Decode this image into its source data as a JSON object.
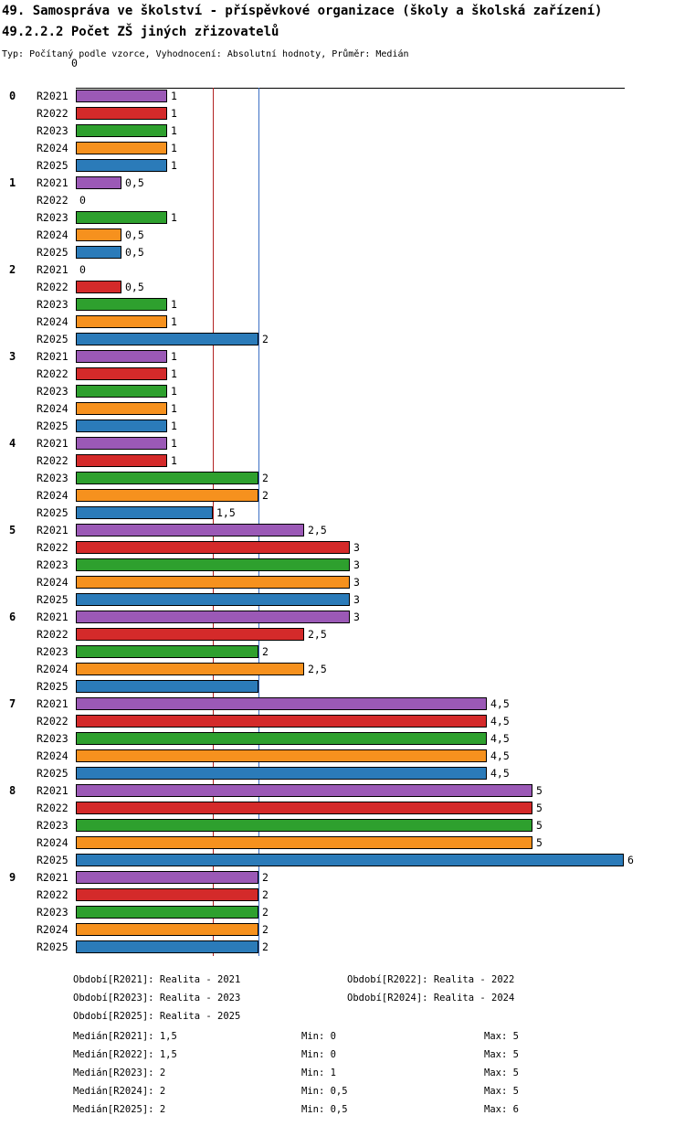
{
  "header": {
    "title": "49. Samospráva ve školství - příspěvkové organizace (školy a školská zařízení)",
    "subtitle": "49.2.2.2 Počet ZŠ jiných zřizovatelů",
    "meta": "Typ: Počítaný podle vzorce, Vyhodnocení: Absolutní hodnoty, Průměr: Medián"
  },
  "chart_data": {
    "type": "bar",
    "orientation": "horizontal",
    "title": "49. Samospráva ve školství - příspěvkové organizace (školy a školská zařízení)",
    "subtitle": "49.2.2.2 Počet ZŠ jiných zřizovatelů",
    "xlim": [
      0,
      6
    ],
    "x_axis": {
      "origin_label": "0"
    },
    "grid": false,
    "series_names": [
      "R2021",
      "R2022",
      "R2023",
      "R2024",
      "R2025"
    ],
    "series_colors": [
      "#9B59B6",
      "#D42A2A",
      "#2EA02E",
      "#F6911E",
      "#2B7BB9"
    ],
    "reference_lines": [
      {
        "value": 1.5,
        "color": "#B22222",
        "name": "median-line-red"
      },
      {
        "value": 2,
        "color": "#3C6FC4",
        "name": "median-line-blue"
      }
    ],
    "groups": [
      {
        "label": "0",
        "values": [
          1,
          1,
          1,
          1,
          1
        ],
        "labels": [
          "1",
          "1",
          "1",
          "1",
          "1"
        ]
      },
      {
        "label": "1",
        "values": [
          0.5,
          0,
          1,
          0.5,
          0.5
        ],
        "labels": [
          "0,5",
          "0",
          "1",
          "0,5",
          "0,5"
        ]
      },
      {
        "label": "2",
        "values": [
          0,
          0.5,
          1,
          1,
          2
        ],
        "labels": [
          "0",
          "0,5",
          "1",
          "1",
          "2"
        ]
      },
      {
        "label": "3",
        "values": [
          1,
          1,
          1,
          1,
          1
        ],
        "labels": [
          "1",
          "1",
          "1",
          "1",
          "1"
        ]
      },
      {
        "label": "4",
        "values": [
          1,
          1,
          2,
          2,
          1.5
        ],
        "labels": [
          "1",
          "1",
          "2",
          "2",
          "1,5"
        ]
      },
      {
        "label": "5",
        "values": [
          2.5,
          3,
          3,
          3,
          3
        ],
        "labels": [
          "2,5",
          "3",
          "3",
          "3",
          "3"
        ]
      },
      {
        "label": "6",
        "values": [
          3,
          2.5,
          2,
          2.5,
          2
        ],
        "labels": [
          "3",
          "2,5",
          "2",
          "2,5",
          ""
        ]
      },
      {
        "label": "7",
        "values": [
          4.5,
          4.5,
          4.5,
          4.5,
          4.5
        ],
        "labels": [
          "4,5",
          "4,5",
          "4,5",
          "4,5",
          "4,5"
        ]
      },
      {
        "label": "8",
        "values": [
          5,
          5,
          5,
          5,
          6
        ],
        "labels": [
          "5",
          "5",
          "5",
          "5",
          "6"
        ]
      },
      {
        "label": "9",
        "values": [
          2,
          2,
          2,
          2,
          2
        ],
        "labels": [
          "2",
          "2",
          "2",
          "2",
          "2"
        ]
      }
    ]
  },
  "legend": {
    "periods": [
      "Období[R2021]: Realita - 2021",
      "Období[R2022]: Realita - 2022",
      "Období[R2023]: Realita - 2023",
      "Období[R2024]: Realita - 2024",
      "Období[R2025]: Realita - 2025"
    ],
    "stats": [
      {
        "median": "Medián[R2021]: 1,5",
        "min": "Min: 0",
        "max": "Max: 5"
      },
      {
        "median": "Medián[R2022]: 1,5",
        "min": "Min: 0",
        "max": "Max: 5"
      },
      {
        "median": "Medián[R2023]: 2",
        "min": "Min: 1",
        "max": "Max: 5"
      },
      {
        "median": "Medián[R2024]: 2",
        "min": "Min: 0,5",
        "max": "Max: 5"
      },
      {
        "median": "Medián[R2025]: 2",
        "min": "Min: 0,5",
        "max": "Max: 6"
      }
    ]
  }
}
